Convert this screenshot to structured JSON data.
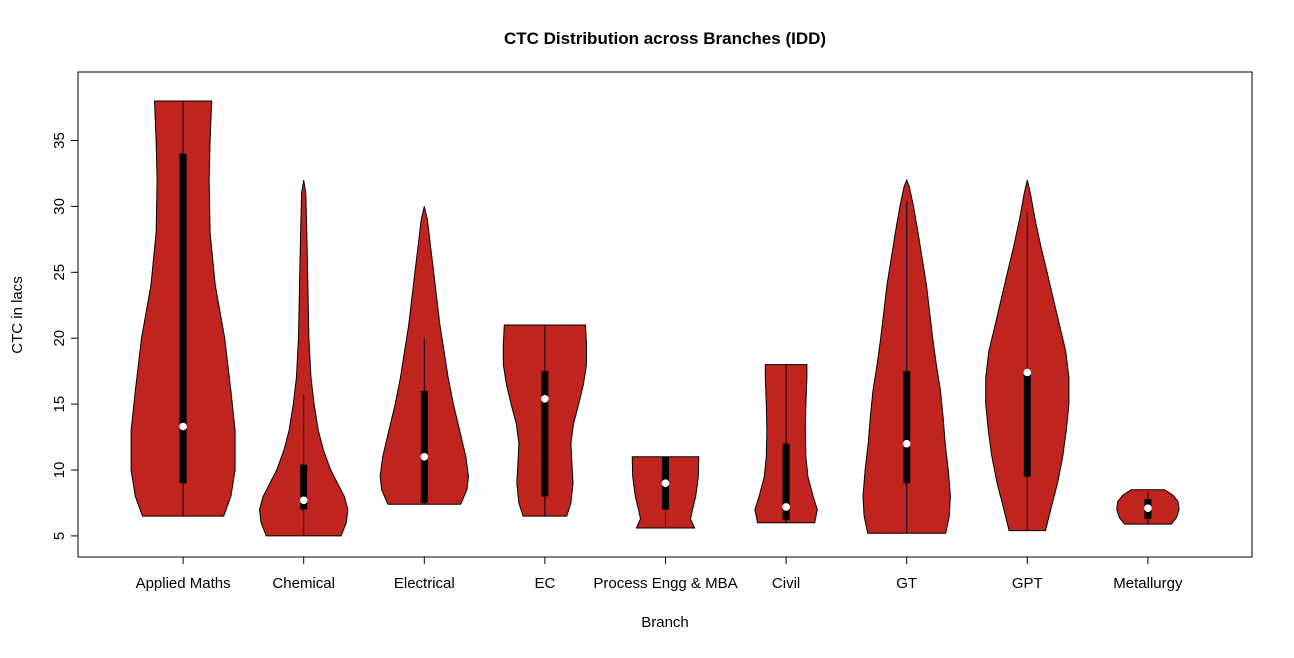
{
  "page": {
    "background": "#FFFFFF"
  },
  "chart_data": {
    "type": "violin",
    "title": "CTC Distribution across Branches (IDD)",
    "xlabel": "Branch",
    "ylabel": "CTC in lacs",
    "ylim": [
      3.4,
      40.2
    ],
    "y_ticks": [
      5,
      10,
      15,
      20,
      25,
      30,
      35
    ],
    "grid": false,
    "legend": "none",
    "violin_fill": "#C0241E",
    "violin_stroke": "#000000",
    "box_color": "#000000",
    "median_dot_color": "#FFFFFF",
    "categories": [
      "Applied Maths",
      "Chemical",
      "Electrical",
      "EC",
      "Process Engg & MBA",
      "Civil",
      "GT",
      "GPT",
      "Metallurgy"
    ],
    "violins": [
      {
        "name": "Applied Maths",
        "min": 6.5,
        "max": 38,
        "median": 13.3,
        "q1": 9,
        "q3": 34,
        "whisker_low": 6.5,
        "whisker_high": 38,
        "density": [
          [
            6.5,
            0.78
          ],
          [
            8,
            0.92
          ],
          [
            10,
            1.0
          ],
          [
            13,
            1.0
          ],
          [
            16,
            0.92
          ],
          [
            20,
            0.8
          ],
          [
            24,
            0.62
          ],
          [
            28,
            0.52
          ],
          [
            32,
            0.5
          ],
          [
            35,
            0.52
          ],
          [
            38,
            0.55
          ]
        ]
      },
      {
        "name": "Chemical",
        "min": 5,
        "max": 32,
        "median": 7.7,
        "q1": 7,
        "q3": 10.4,
        "whisker_low": 5,
        "whisker_high": 15.7,
        "density": [
          [
            5,
            0.72
          ],
          [
            6,
            0.82
          ],
          [
            7,
            0.85
          ],
          [
            8,
            0.78
          ],
          [
            9,
            0.65
          ],
          [
            10,
            0.52
          ],
          [
            11.5,
            0.38
          ],
          [
            13,
            0.28
          ],
          [
            15,
            0.2
          ],
          [
            17,
            0.14
          ],
          [
            20,
            0.1
          ],
          [
            24,
            0.08
          ],
          [
            28,
            0.06
          ],
          [
            31,
            0.04
          ],
          [
            32,
            0.0
          ]
        ]
      },
      {
        "name": "Electrical",
        "min": 7.4,
        "max": 30,
        "median": 11,
        "q1": 7.5,
        "q3": 16,
        "whisker_low": 7.4,
        "whisker_high": 20,
        "density": [
          [
            7.4,
            0.7
          ],
          [
            8.5,
            0.82
          ],
          [
            9.5,
            0.85
          ],
          [
            11,
            0.8
          ],
          [
            13,
            0.68
          ],
          [
            15,
            0.56
          ],
          [
            17,
            0.46
          ],
          [
            19,
            0.38
          ],
          [
            21,
            0.3
          ],
          [
            23,
            0.24
          ],
          [
            25,
            0.18
          ],
          [
            27,
            0.12
          ],
          [
            29,
            0.06
          ],
          [
            30,
            0.0
          ]
        ]
      },
      {
        "name": "EC",
        "min": 6.5,
        "max": 21,
        "median": 15.4,
        "q1": 8,
        "q3": 17.5,
        "whisker_low": 6.5,
        "whisker_high": 21,
        "density": [
          [
            6.5,
            0.42
          ],
          [
            7.5,
            0.5
          ],
          [
            9,
            0.54
          ],
          [
            10.5,
            0.52
          ],
          [
            12,
            0.5
          ],
          [
            13.5,
            0.55
          ],
          [
            15,
            0.65
          ],
          [
            16.5,
            0.74
          ],
          [
            18,
            0.8
          ],
          [
            19.5,
            0.8
          ],
          [
            21,
            0.78
          ]
        ]
      },
      {
        "name": "Process Engg & MBA",
        "min": 5.6,
        "max": 11,
        "median": 9,
        "q1": 7,
        "q3": 11,
        "whisker_low": 5.6,
        "whisker_high": 11,
        "density": [
          [
            5.6,
            0.56
          ],
          [
            6.3,
            0.48
          ],
          [
            7,
            0.52
          ],
          [
            8,
            0.58
          ],
          [
            9.5,
            0.63
          ],
          [
            11,
            0.64
          ]
        ]
      },
      {
        "name": "Civil",
        "min": 6,
        "max": 18,
        "median": 7.2,
        "q1": 6.2,
        "q3": 12,
        "whisker_low": 6,
        "whisker_high": 18,
        "density": [
          [
            6,
            0.55
          ],
          [
            7,
            0.6
          ],
          [
            8,
            0.52
          ],
          [
            9.5,
            0.42
          ],
          [
            11,
            0.38
          ],
          [
            13,
            0.37
          ],
          [
            15,
            0.38
          ],
          [
            17,
            0.4
          ],
          [
            18,
            0.4
          ]
        ]
      },
      {
        "name": "GT",
        "min": 5.2,
        "max": 32,
        "median": 12,
        "q1": 9,
        "q3": 17.5,
        "whisker_low": 5.2,
        "whisker_high": 30.4,
        "density": [
          [
            5.2,
            0.75
          ],
          [
            6.5,
            0.82
          ],
          [
            8,
            0.84
          ],
          [
            10,
            0.8
          ],
          [
            12,
            0.74
          ],
          [
            14,
            0.7
          ],
          [
            16,
            0.65
          ],
          [
            18,
            0.57
          ],
          [
            20,
            0.5
          ],
          [
            22,
            0.44
          ],
          [
            24,
            0.38
          ],
          [
            26,
            0.3
          ],
          [
            28,
            0.22
          ],
          [
            30,
            0.13
          ],
          [
            31.5,
            0.05
          ],
          [
            32,
            0.0
          ]
        ]
      },
      {
        "name": "GPT",
        "min": 5.4,
        "max": 32,
        "median": 17.4,
        "q1": 9.5,
        "q3": 17.5,
        "whisker_low": 5.4,
        "whisker_high": 29.6,
        "density": [
          [
            5.4,
            0.35
          ],
          [
            7,
            0.45
          ],
          [
            9,
            0.58
          ],
          [
            11,
            0.68
          ],
          [
            13,
            0.75
          ],
          [
            15,
            0.8
          ],
          [
            17,
            0.8
          ],
          [
            19,
            0.74
          ],
          [
            21,
            0.62
          ],
          [
            23,
            0.5
          ],
          [
            25,
            0.38
          ],
          [
            27,
            0.26
          ],
          [
            29,
            0.15
          ],
          [
            31,
            0.06
          ],
          [
            32,
            0.0
          ]
        ]
      },
      {
        "name": "Metallurgy",
        "min": 5.9,
        "max": 8.5,
        "median": 7.1,
        "q1": 6.3,
        "q3": 7.8,
        "whisker_low": 5.9,
        "whisker_high": 8.3,
        "density": [
          [
            5.9,
            0.45
          ],
          [
            6.4,
            0.55
          ],
          [
            7,
            0.6
          ],
          [
            7.6,
            0.58
          ],
          [
            8.1,
            0.48
          ],
          [
            8.5,
            0.32
          ]
        ]
      }
    ]
  }
}
